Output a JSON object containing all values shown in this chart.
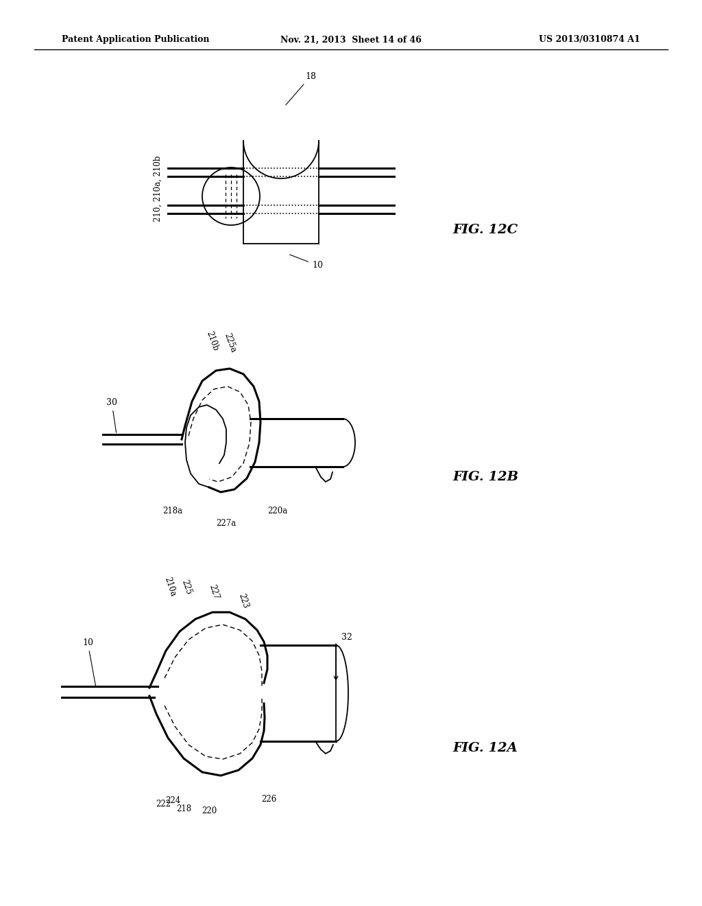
{
  "header_left": "Patent Application Publication",
  "header_mid": "Nov. 21, 2013  Sheet 14 of 46",
  "header_right": "US 2013/0310874 A1",
  "background_color": "#ffffff",
  "lw": 1.3,
  "lw_thick": 2.2
}
